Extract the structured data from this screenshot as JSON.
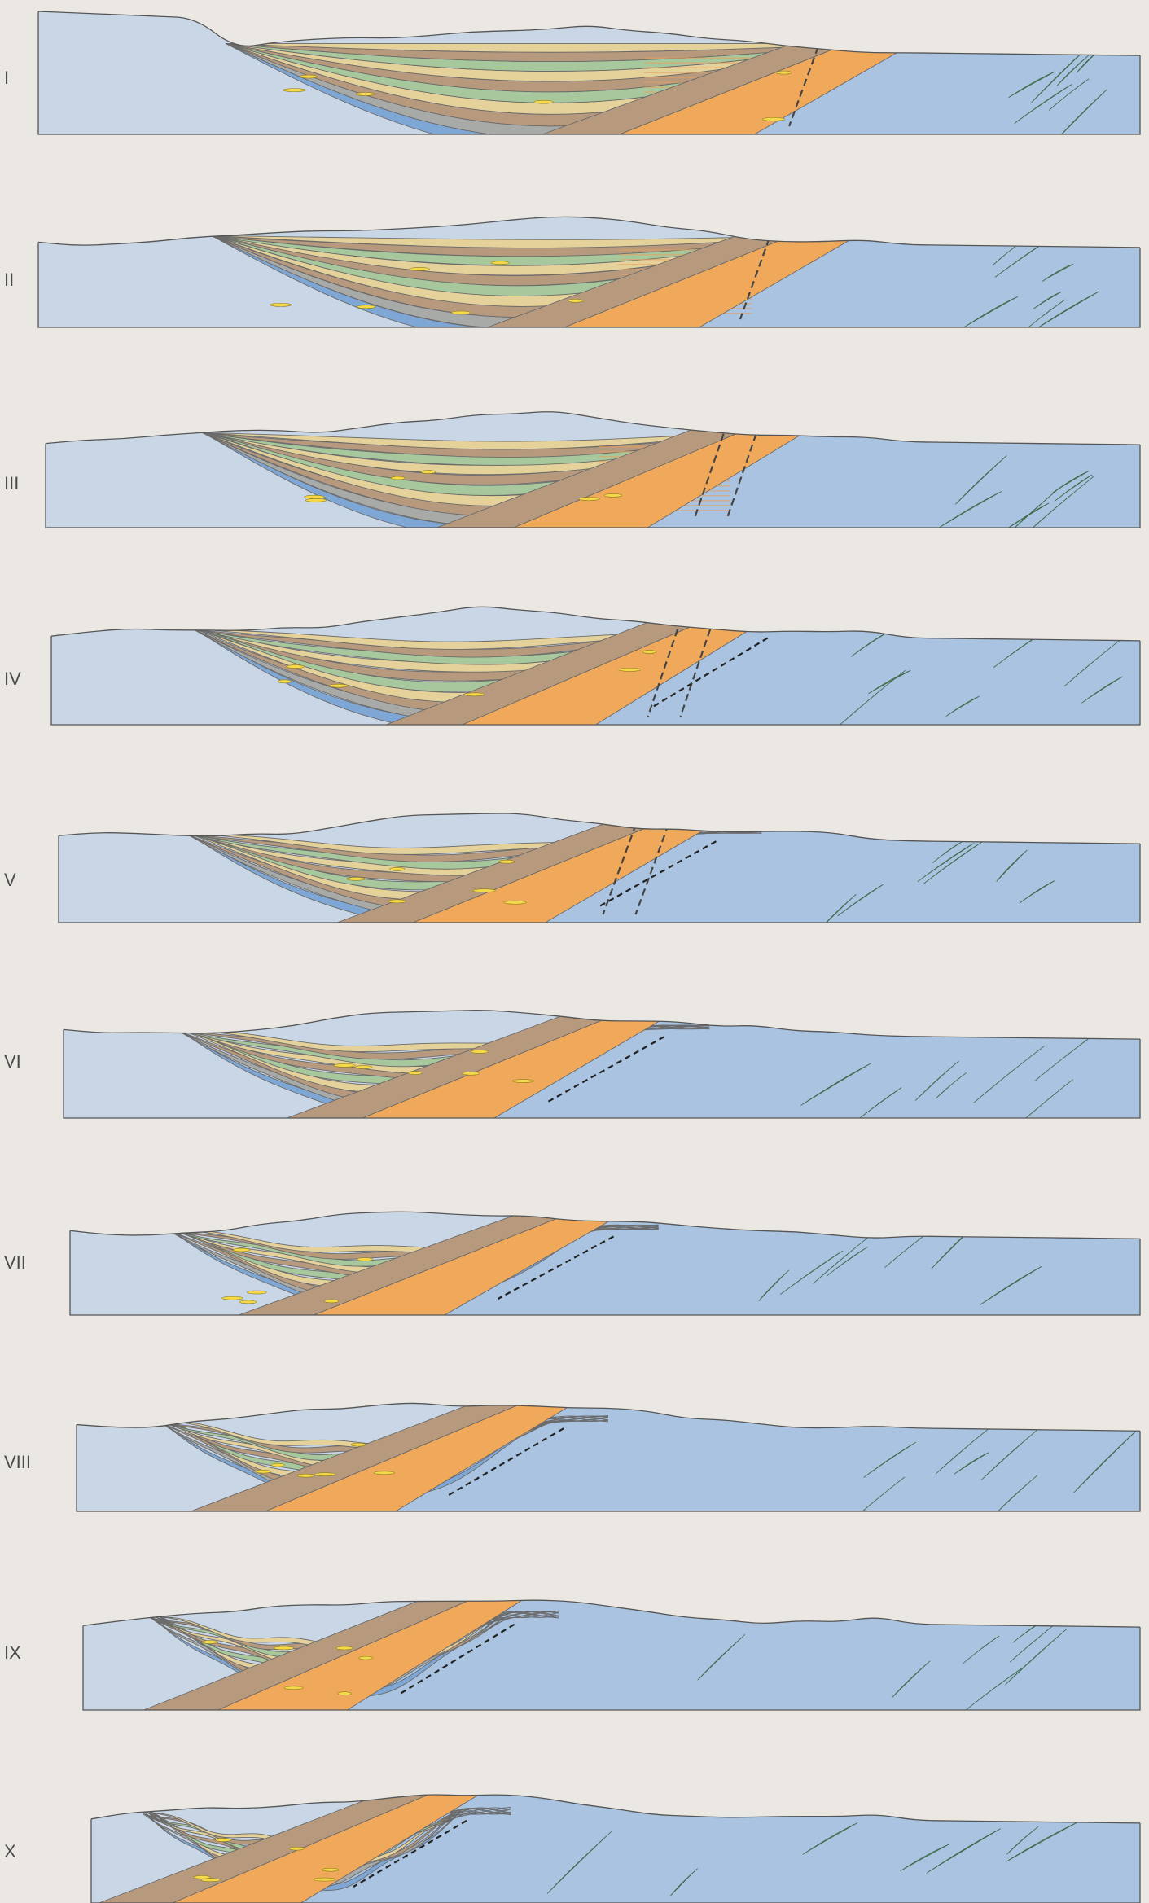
{
  "figure": {
    "sections": [
      {
        "label": "I"
      },
      {
        "label": "II"
      },
      {
        "label": "III"
      },
      {
        "label": "IV"
      },
      {
        "label": "V"
      },
      {
        "label": "VI"
      },
      {
        "label": "VII"
      },
      {
        "label": "VIII"
      },
      {
        "label": "IX"
      },
      {
        "label": "X"
      }
    ]
  },
  "colors": {
    "background": "#ebe8e4",
    "sky": "#ebe8e4",
    "basement_light": "#c9d6e6",
    "basement": "#a9c3e0",
    "blue_layer": "#7ea7d6",
    "tan": "#e5d29a",
    "brown": "#b79a7e",
    "green": "#a7c89c",
    "grey": "#a8aaa8",
    "orange": "#f0a85a",
    "yellow": "#f5d94a",
    "dark_green": "#6f9a76",
    "line": "#555555"
  }
}
